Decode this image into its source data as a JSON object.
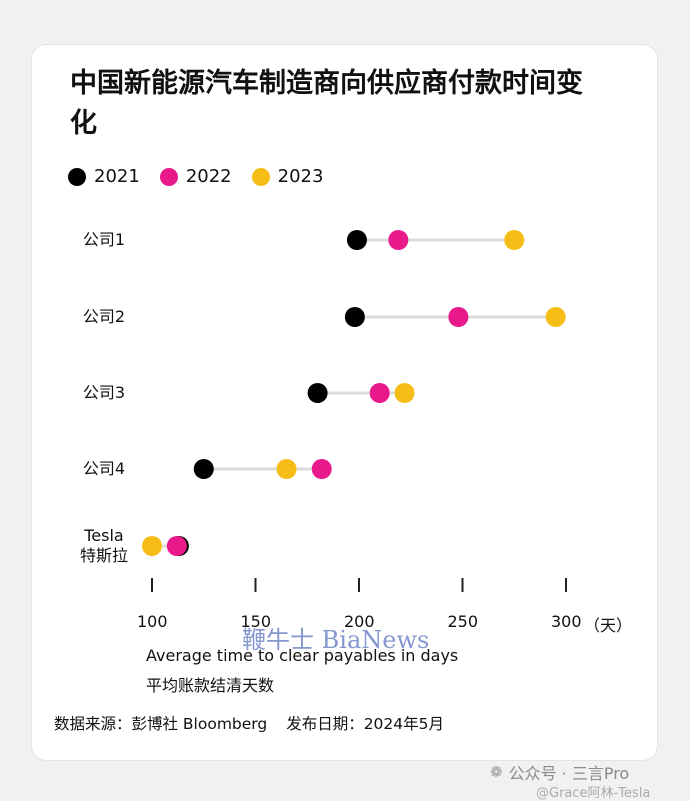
{
  "title": "中国新能源汽车制造商向供应商付款时间变化",
  "legend": [
    {
      "label": "2021",
      "color": "#000000"
    },
    {
      "label": "2022",
      "color": "#e8198b"
    },
    {
      "label": "2023",
      "color": "#f6bd16"
    }
  ],
  "chart_data": {
    "type": "dumbbell",
    "categories": [
      "公司1",
      "公司2",
      "公司3",
      "公司4",
      "Tesla 特斯拉"
    ],
    "category_lines": [
      [
        "公司1"
      ],
      [
        "公司2"
      ],
      [
        "公司3"
      ],
      [
        "公司4"
      ],
      [
        "Tesla",
        "特斯拉"
      ]
    ],
    "series": [
      {
        "name": "2021",
        "color": "#000000",
        "values": [
          199,
          198,
          180,
          125,
          113
        ]
      },
      {
        "name": "2022",
        "color": "#e8198b",
        "values": [
          219,
          248,
          210,
          182,
          112
        ]
      },
      {
        "name": "2023",
        "color": "#f6bd16",
        "values": [
          275,
          295,
          222,
          165,
          100
        ]
      }
    ],
    "xticks": [
      100,
      150,
      200,
      250,
      300
    ],
    "xunit": "（天）",
    "xlabel": "Average time to clear payables in days",
    "xlabel_zh": "平均账款结清天数",
    "xlim": [
      100,
      300
    ],
    "grid": false
  },
  "footer": {
    "source": "数据来源：彭博社 Bloomberg",
    "date": "发布日期：2024年5月"
  },
  "watermark": "鞭牛士 BiaNews",
  "wechat": "公众号 · 三言Pro",
  "credit": "@Grace阿林-Tesla"
}
